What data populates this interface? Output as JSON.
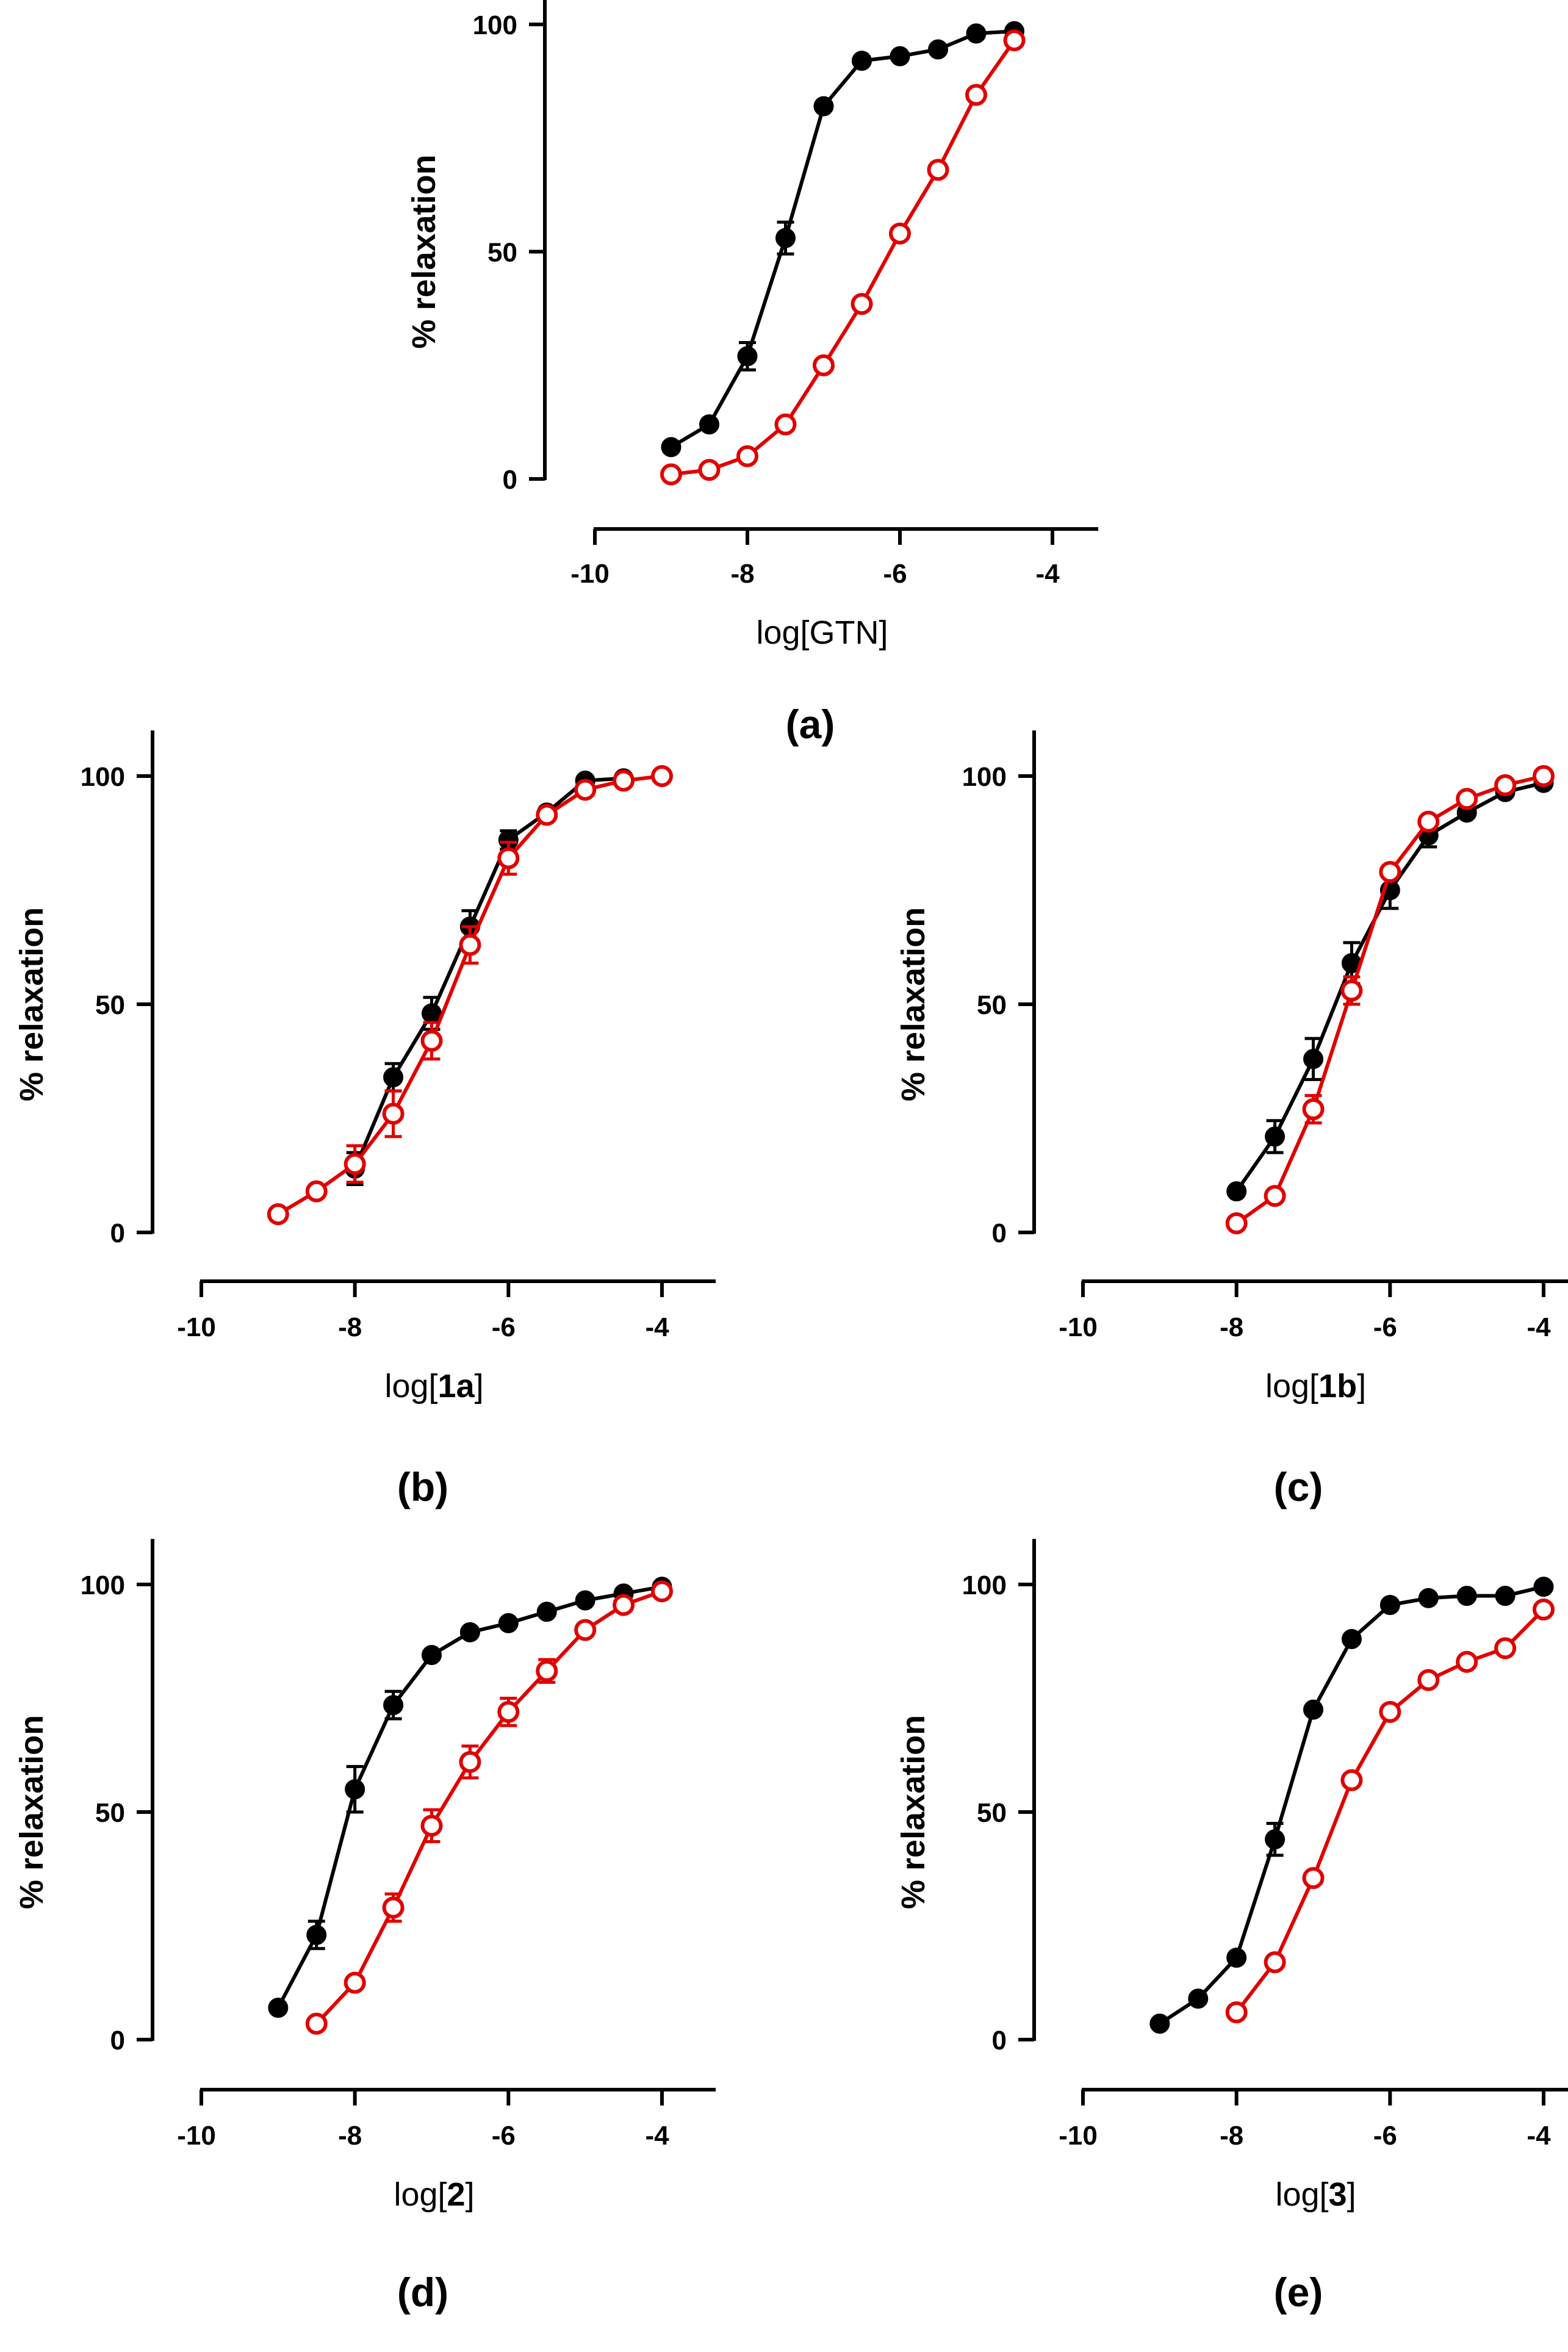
{
  "chart_data": [
    {
      "type": "line",
      "panel_label": "(a)",
      "xlabel_prefix": "log[",
      "xlabel_compound": "GTN",
      "xlabel_compound_bold": false,
      "xlabel_suffix": "]",
      "ylabel": "% relaxation",
      "xlim": [
        -10,
        -3.4
      ],
      "ylim": [
        0,
        108
      ],
      "xticks": [
        -10,
        -8,
        -6,
        -4
      ],
      "xtick_labels": [
        "-10",
        "-8",
        "-6",
        "-4"
      ],
      "yticks": [
        0,
        50,
        100
      ],
      "ytick_labels": [
        "0",
        "50",
        "100"
      ],
      "series": [
        {
          "name": "black filled",
          "color": "#000000",
          "marker": "filled-circle",
          "x": [
            -9,
            -8.5,
            -8,
            -7.5,
            -7,
            -6.5,
            -6,
            -5.5,
            -5,
            -4.5
          ],
          "y": [
            7,
            12,
            27,
            53,
            82,
            92,
            93,
            94.5,
            98,
            98.5
          ],
          "err": [
            0,
            0,
            3,
            3.5,
            0,
            0,
            0,
            0,
            0,
            0
          ]
        },
        {
          "name": "red open",
          "color": "#e00000",
          "marker": "open-circle",
          "x": [
            -9,
            -8.5,
            -8,
            -7.5,
            -7,
            -6.5,
            -6,
            -5.5,
            -5,
            -4.5
          ],
          "y": [
            1,
            2,
            5,
            12,
            25,
            38.5,
            54,
            68,
            84.5,
            96.5
          ],
          "err": [
            0,
            0,
            0,
            0,
            0,
            0,
            0,
            0,
            0,
            0
          ]
        }
      ]
    },
    {
      "type": "line",
      "panel_label": "(b)",
      "xlabel_prefix": "log[",
      "xlabel_compound": "1a",
      "xlabel_compound_bold": true,
      "xlabel_suffix": "]",
      "ylabel": "% relaxation",
      "xlim": [
        -10,
        -3.3
      ],
      "ylim": [
        0,
        110
      ],
      "xticks": [
        -10,
        -8,
        -6,
        -4
      ],
      "xtick_labels": [
        "-10",
        "-8",
        "-6",
        "-4"
      ],
      "yticks": [
        0,
        50,
        100
      ],
      "ytick_labels": [
        "0",
        "50",
        "100"
      ],
      "series": [
        {
          "name": "black filled",
          "color": "#000000",
          "marker": "filled-circle",
          "x": [
            -8,
            -7.5,
            -7,
            -6.5,
            -6,
            -5.5,
            -5,
            -4.5
          ],
          "y": [
            14,
            34,
            48,
            67,
            86,
            92,
            99,
            99.5
          ],
          "err": [
            3.5,
            3,
            3.5,
            3.5,
            2,
            0,
            0,
            0
          ]
        },
        {
          "name": "red open",
          "color": "#e00000",
          "marker": "open-circle",
          "x": [
            -9,
            -8.5,
            -8,
            -7.5,
            -7,
            -6.5,
            -6,
            -5.5,
            -5,
            -4.5,
            -4
          ],
          "y": [
            4,
            9,
            15,
            26,
            42,
            63,
            82,
            91.5,
            97,
            99,
            100
          ],
          "err": [
            0,
            0,
            4,
            5,
            4,
            4,
            3.5,
            0,
            0,
            0,
            0
          ]
        }
      ]
    },
    {
      "type": "line",
      "panel_label": "(c)",
      "xlabel_prefix": "log[",
      "xlabel_compound": "1b",
      "xlabel_compound_bold": true,
      "xlabel_suffix": "]",
      "ylabel": "% relaxation",
      "xlim": [
        -10,
        -3.3
      ],
      "ylim": [
        0,
        110
      ],
      "xticks": [
        -10,
        -8,
        -6,
        -4
      ],
      "xtick_labels": [
        "-10",
        "-8",
        "-6",
        "-4"
      ],
      "yticks": [
        0,
        50,
        100
      ],
      "ytick_labels": [
        "0",
        "50",
        "100"
      ],
      "series": [
        {
          "name": "black filled",
          "color": "#000000",
          "marker": "filled-circle",
          "x": [
            -8,
            -7.5,
            -7,
            -6.5,
            -6,
            -5.5,
            -5,
            -4.5,
            -4
          ],
          "y": [
            9,
            21,
            38,
            59,
            75,
            87,
            92,
            96.5,
            98.5
          ],
          "err": [
            0,
            3.5,
            4.5,
            4.5,
            4,
            2.5,
            0,
            0,
            0
          ]
        },
        {
          "name": "red open",
          "color": "#e00000",
          "marker": "open-circle",
          "x": [
            -8,
            -7.5,
            -7,
            -6.5,
            -6,
            -5.5,
            -5,
            -4.5,
            -4
          ],
          "y": [
            2,
            8,
            27,
            53,
            79,
            90,
            95,
            98,
            100
          ],
          "err": [
            0,
            0,
            3,
            3,
            0,
            0,
            0,
            0,
            0
          ]
        }
      ]
    },
    {
      "type": "line",
      "panel_label": "(d)",
      "xlabel_prefix": "log[",
      "xlabel_compound": "2",
      "xlabel_compound_bold": true,
      "xlabel_suffix": "]",
      "ylabel": "% relaxation",
      "xlim": [
        -10,
        -3.3
      ],
      "ylim": [
        0,
        110
      ],
      "xticks": [
        -10,
        -8,
        -6,
        -4
      ],
      "xtick_labels": [
        "-10",
        "-8",
        "-6",
        "-4"
      ],
      "yticks": [
        0,
        50,
        100
      ],
      "ytick_labels": [
        "0",
        "50",
        "100"
      ],
      "series": [
        {
          "name": "black filled",
          "color": "#000000",
          "marker": "filled-circle",
          "x": [
            -9,
            -8.5,
            -8,
            -7.5,
            -7,
            -6.5,
            -6,
            -5.5,
            -5,
            -4.5,
            -4
          ],
          "y": [
            7,
            23,
            55,
            73.5,
            84.5,
            89.5,
            91.5,
            94,
            96.5,
            98,
            99.5
          ],
          "err": [
            0,
            3,
            5,
            3,
            0,
            0,
            0,
            0,
            0,
            0,
            0
          ]
        },
        {
          "name": "red open",
          "color": "#e00000",
          "marker": "open-circle",
          "x": [
            -8.5,
            -8,
            -7.5,
            -7,
            -6.5,
            -6,
            -5.5,
            -5,
            -4.5,
            -4
          ],
          "y": [
            3.5,
            12.5,
            29,
            47,
            61,
            72,
            81,
            90,
            95.5,
            98.5
          ],
          "err": [
            0,
            0,
            3,
            3.5,
            3.5,
            3,
            2.5,
            0,
            0,
            0
          ]
        }
      ]
    },
    {
      "type": "line",
      "panel_label": "(e)",
      "xlabel_prefix": "log[",
      "xlabel_compound": "3",
      "xlabel_compound_bold": true,
      "xlabel_suffix": "]",
      "ylabel": "% relaxation",
      "xlim": [
        -10,
        -3.3
      ],
      "ylim": [
        0,
        110
      ],
      "xticks": [
        -10,
        -8,
        -6,
        -4
      ],
      "xtick_labels": [
        "-10",
        "-8",
        "-6",
        "-4"
      ],
      "yticks": [
        0,
        50,
        100
      ],
      "ytick_labels": [
        "0",
        "50",
        "100"
      ],
      "series": [
        {
          "name": "black filled",
          "color": "#000000",
          "marker": "filled-circle",
          "x": [
            -9,
            -8.5,
            -8,
            -7.5,
            -7,
            -6.5,
            -6,
            -5.5,
            -5,
            -4.5,
            -4
          ],
          "y": [
            3.5,
            9,
            18,
            44,
            72.5,
            88,
            95.5,
            97,
            97.5,
            97.5,
            99.5
          ],
          "err": [
            0,
            0,
            0,
            3.5,
            0,
            0,
            0,
            0,
            0,
            0,
            0
          ]
        },
        {
          "name": "red open",
          "color": "#e00000",
          "marker": "open-circle",
          "x": [
            -8,
            -7.5,
            -7,
            -6.5,
            -6,
            -5.5,
            -5,
            -4.5,
            -4
          ],
          "y": [
            6,
            17,
            35.5,
            57,
            72,
            79,
            83,
            86,
            94.5
          ],
          "err": [
            0,
            0,
            0,
            0,
            0,
            0,
            0,
            0,
            0
          ]
        }
      ]
    }
  ]
}
